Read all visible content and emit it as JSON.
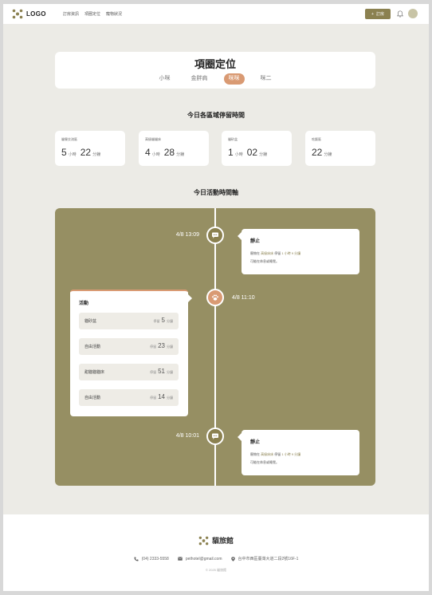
{
  "colors": {
    "accent": "#8b8150",
    "active_tab": "#d99a73",
    "timeline_bg": "#968f63"
  },
  "header": {
    "logo_text": "LOGO",
    "nav": [
      "訂房資訊",
      "項圈定位",
      "寵物狀況"
    ],
    "book_label": "訂房",
    "book_icon": "plus-icon",
    "bell_icon": "bell-icon"
  },
  "title_card": {
    "title": "項圈定位",
    "tabs": [
      {
        "label": "小咪",
        "active": false
      },
      {
        "label": "金胖肩",
        "active": false
      },
      {
        "label": "咪咪",
        "active": true
      },
      {
        "label": "咪二",
        "active": false
      }
    ]
  },
  "stats_title": "今日各區域停留時間",
  "stats": [
    {
      "label": "貓餐交流區",
      "parts": [
        {
          "num": "5",
          "unit": "小時"
        },
        {
          "num": "22",
          "unit": "分鐘"
        }
      ]
    },
    {
      "label": "高級貓貓床",
      "parts": [
        {
          "num": "4",
          "unit": "小時"
        },
        {
          "num": "28",
          "unit": "分鐘"
        }
      ]
    },
    {
      "label": "貓砂盆",
      "parts": [
        {
          "num": "1",
          "unit": "小時"
        },
        {
          "num": "02",
          "unit": "分鐘"
        }
      ]
    },
    {
      "label": "吃飯區",
      "parts": [
        {
          "num": "22",
          "unit": "分鐘"
        }
      ]
    }
  ],
  "timeline_title": "今日活動時間軸",
  "timeline": {
    "events": [
      {
        "time": "4/8  13:09",
        "icon": "speech-bubble-icon",
        "title": "靜止",
        "line1_pre": "寵物在",
        "line1_place": "高級床床",
        "line1_mid": "停留",
        "line1_dur": "1 小時 9 分鐘",
        "line2": "可能在休息或睡覺。"
      },
      {
        "time": "4/8  10:01",
        "icon": "speech-bubble-icon",
        "title": "靜止",
        "line1_pre": "寵物在",
        "line1_place": "高級床床",
        "line1_mid": "停留",
        "line1_dur": "1 小時 9 分鐘",
        "line2": "可能在休息或睡覺。"
      }
    ],
    "activity": {
      "time": "4/8  11:10",
      "icon": "paw-icon",
      "title": "活動",
      "rows": [
        {
          "name": "貓砂盆",
          "pre": "停留",
          "num": "5",
          "unit": "分鐘"
        },
        {
          "name": "自由活動",
          "pre": "停留",
          "num": "23",
          "unit": "分鐘"
        },
        {
          "name": "甜貓貓貓床",
          "pre": "停留",
          "num": "51",
          "unit": "分鐘"
        },
        {
          "name": "自由活動",
          "pre": "停留",
          "num": "14",
          "unit": "分鐘"
        }
      ]
    }
  },
  "footer": {
    "brand": "貓旅館",
    "phone": "(04) 2333-5558",
    "email": "pethotel@gmail.com",
    "address": "台中市西區臺灣大道二段2號16F-1",
    "copyright": "© 2025 貓旅館"
  }
}
